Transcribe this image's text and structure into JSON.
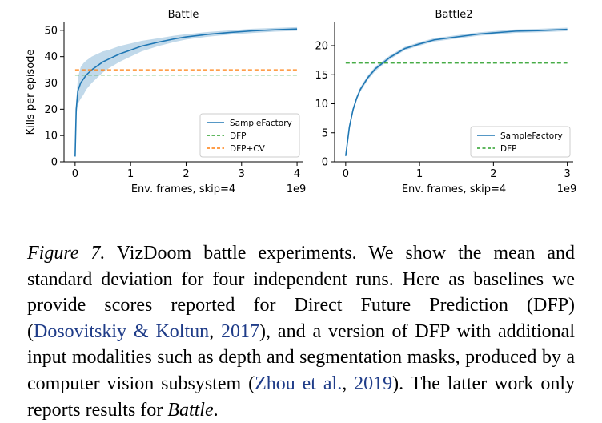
{
  "chart_data": [
    {
      "type": "line",
      "title": "Battle",
      "xlabel": "Env. frames, skip=4",
      "ylabel": "Kills per episode",
      "x_multiplier": "1e9",
      "xlim": [
        -0.2,
        4.1
      ],
      "ylim": [
        0,
        53
      ],
      "xticks": [
        "0",
        "1",
        "2",
        "3",
        "4"
      ],
      "yticks": [
        "0",
        "10",
        "20",
        "30",
        "40",
        "50"
      ],
      "legend_position": "lower-right",
      "series": [
        {
          "name": "SampleFactory",
          "style": "solid",
          "color": "#1f77b4",
          "x": [
            0,
            0.02,
            0.05,
            0.1,
            0.15,
            0.2,
            0.3,
            0.4,
            0.5,
            0.6,
            0.8,
            1.0,
            1.2,
            1.5,
            1.8,
            2.0,
            2.4,
            2.8,
            3.2,
            3.6,
            4.0
          ],
          "y": [
            2,
            20,
            27,
            30,
            31.5,
            33,
            35,
            36.5,
            38,
            39,
            41,
            42.5,
            44,
            45.5,
            46.8,
            47.5,
            48.5,
            49.2,
            49.8,
            50.2,
            50.5
          ],
          "band": [
            0.5,
            3,
            5,
            6,
            6,
            5.5,
            5,
            4.5,
            4,
            3.5,
            3,
            2.5,
            2,
            1.5,
            1.2,
            1,
            0.9,
            0.8,
            0.8,
            0.7,
            0.7
          ]
        },
        {
          "name": "DFP",
          "style": "dashed",
          "color": "#2ca02c",
          "x": [
            0,
            4
          ],
          "y": [
            33,
            33
          ]
        },
        {
          "name": "DFP+CV",
          "style": "dashed",
          "color": "#ff7f0e",
          "x": [
            0,
            4
          ],
          "y": [
            35,
            35
          ]
        }
      ]
    },
    {
      "type": "line",
      "title": "Battle2",
      "xlabel": "Env. frames, skip=4",
      "ylabel": "",
      "x_multiplier": "1e9",
      "xlim": [
        -0.15,
        3.08
      ],
      "ylim": [
        0,
        24
      ],
      "xticks": [
        "0",
        "1",
        "2",
        "3"
      ],
      "yticks": [
        "0",
        "5",
        "10",
        "15",
        "20"
      ],
      "legend_position": "lower-right",
      "series": [
        {
          "name": "SampleFactory",
          "style": "solid",
          "color": "#1f77b4",
          "x": [
            0,
            0.02,
            0.05,
            0.1,
            0.15,
            0.2,
            0.3,
            0.4,
            0.5,
            0.6,
            0.8,
            1.0,
            1.2,
            1.5,
            1.8,
            2.0,
            2.3,
            2.6,
            3.0
          ],
          "y": [
            1,
            3,
            6,
            9,
            11,
            12.5,
            14.5,
            16,
            17,
            18,
            19.5,
            20.3,
            21,
            21.5,
            22,
            22.2,
            22.5,
            22.6,
            22.8
          ],
          "band": [
            0.2,
            0.3,
            0.4,
            0.4,
            0.4,
            0.4,
            0.4,
            0.4,
            0.35,
            0.35,
            0.3,
            0.3,
            0.3,
            0.3,
            0.3,
            0.3,
            0.3,
            0.3,
            0.3
          ]
        },
        {
          "name": "DFP",
          "style": "dashed",
          "color": "#2ca02c",
          "x": [
            0,
            3
          ],
          "y": [
            17,
            17
          ]
        }
      ]
    }
  ],
  "caption": {
    "label": "Figure 7.",
    "text_1": " VizDoom battle experiments.  We show the mean and standard deviation for four independent runs. Here as baselines we provide scores reported for Direct Future Prediction (DFP) (",
    "cite_1": "Dosovitskiy & Koltun",
    "comma_1": ", ",
    "year_1": "2017",
    "text_2": "), and a version of DFP with additional input modalities such as depth and segmentation masks, produced by a computer vision subsystem (",
    "cite_2": "Zhou et al.",
    "comma_2": ", ",
    "year_2": "2019",
    "text_3": ").  The latter work only reports results for ",
    "italic_end": "Battle",
    "period": "."
  }
}
